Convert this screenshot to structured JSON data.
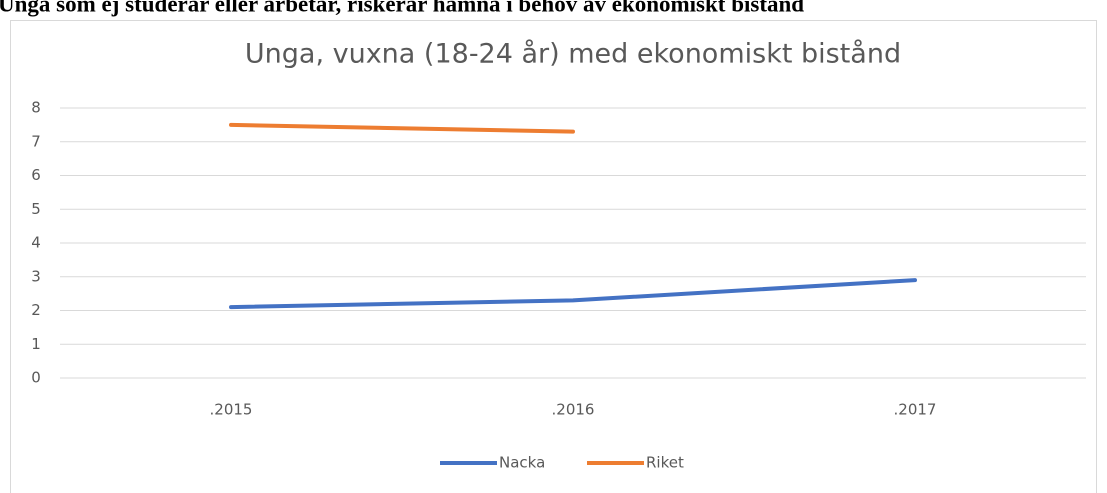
{
  "heading": "Unga som ej studerar eller arbetar, riskerar hamna i behov av ekonomiskt bistånd",
  "chart_data": {
    "type": "line",
    "title": "Unga, vuxna (18-24 år) med ekonomiskt bistånd",
    "categories": [
      ".2015",
      ".2016",
      ".2017"
    ],
    "series": [
      {
        "name": "Nacka",
        "color": "#4472c4",
        "values": [
          2.1,
          2.3,
          2.9
        ]
      },
      {
        "name": "Riket",
        "color": "#ed7d31",
        "values": [
          7.5,
          7.3,
          null
        ]
      }
    ],
    "ylim": [
      0,
      8
    ],
    "yticks": [
      0,
      1,
      2,
      3,
      4,
      5,
      6,
      7,
      8
    ],
    "grid": true,
    "legend": "bottom"
  }
}
